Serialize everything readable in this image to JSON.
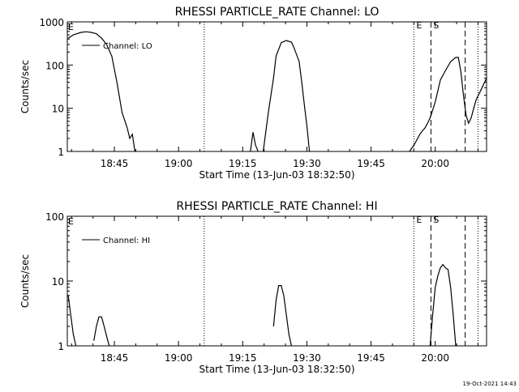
{
  "chart_data": [
    {
      "type": "line",
      "title": "RHESSI PARTICLE_RATE Channel: LO",
      "xlabel": "Start Time (13-Jun-03 18:32:50)",
      "ylabel": "Counts/sec",
      "y_scale": "log",
      "ylim": [
        1,
        1000
      ],
      "xlim": [
        "18:34",
        "20:12"
      ],
      "x_ticks": [
        "18:45",
        "19:00",
        "19:15",
        "19:30",
        "19:45",
        "20:00"
      ],
      "y_ticks": [
        "1",
        "10",
        "100",
        "1000"
      ],
      "legend": "top-left",
      "grid": false,
      "series": [
        {
          "name": "Channel: LO",
          "segments": [
            [
              [
                18.57,
                420
              ],
              [
                18.59,
                500
              ],
              [
                18.62,
                570
              ],
              [
                18.64,
                590
              ],
              [
                18.66,
                570
              ],
              [
                18.68,
                530
              ],
              [
                18.7,
                420
              ],
              [
                18.72,
                300
              ],
              [
                18.74,
                160
              ],
              [
                18.76,
                40
              ],
              [
                18.78,
                8
              ],
              [
                18.8,
                3.5
              ],
              [
                18.81,
                2
              ],
              [
                18.82,
                2.5
              ],
              [
                18.83,
                1
              ]
            ],
            [
              [
                19.28,
                1
              ],
              [
                19.29,
                2.8
              ],
              [
                19.3,
                1.4
              ],
              [
                19.31,
                1
              ]
            ],
            [
              [
                19.33,
                1
              ],
              [
                19.35,
                8
              ],
              [
                19.37,
                50
              ],
              [
                19.38,
                160
              ],
              [
                19.4,
                330
              ],
              [
                19.42,
                370
              ],
              [
                19.44,
                340
              ],
              [
                19.45,
                250
              ],
              [
                19.47,
                120
              ],
              [
                19.48,
                40
              ],
              [
                19.49,
                12
              ],
              [
                19.5,
                4
              ],
              [
                19.51,
                1
              ]
            ],
            [
              [
                19.9,
                1
              ],
              [
                19.92,
                1.5
              ],
              [
                19.94,
                2.5
              ],
              [
                19.95,
                3
              ],
              [
                19.96,
                3.5
              ],
              [
                19.97,
                4.5
              ],
              [
                19.98,
                6
              ],
              [
                19.99,
                9
              ],
              [
                20.0,
                14
              ],
              [
                20.01,
                25
              ],
              [
                20.02,
                45
              ],
              [
                20.04,
                75
              ],
              [
                20.06,
                120
              ],
              [
                20.08,
                150
              ],
              [
                20.09,
                150
              ],
              [
                20.1,
                70
              ],
              [
                20.11,
                20
              ],
              [
                20.12,
                7
              ],
              [
                20.13,
                4.5
              ],
              [
                20.14,
                6
              ],
              [
                20.15,
                10
              ],
              [
                20.16,
                16
              ],
              [
                20.18,
                28
              ],
              [
                20.2,
                50
              ]
            ]
          ]
        }
      ],
      "annotations": [
        {
          "type": "dotted-line",
          "x": "19:06"
        },
        {
          "type": "dotted-line",
          "x": "19:55",
          "label": "E"
        },
        {
          "type": "dashed-line",
          "x": "19:59",
          "label": "S"
        },
        {
          "type": "dashed-line",
          "x": "20:07"
        },
        {
          "type": "dotted-line",
          "x": "20:10"
        },
        {
          "type": "marker",
          "x": "18:34",
          "label": "E"
        }
      ]
    },
    {
      "type": "line",
      "title": "RHESSI PARTICLE_RATE Channel: HI",
      "xlabel": "Start Time (13-Jun-03 18:32:50)",
      "ylabel": "Counts/sec",
      "y_scale": "log",
      "ylim": [
        1,
        100
      ],
      "xlim": [
        "18:34",
        "20:12"
      ],
      "x_ticks": [
        "18:45",
        "19:00",
        "19:15",
        "19:30",
        "19:45",
        "20:00"
      ],
      "y_ticks": [
        "1",
        "10",
        "100"
      ],
      "legend": "top-left",
      "grid": false,
      "series": [
        {
          "name": "Channel: HI",
          "segments": [
            [
              [
                18.57,
                6
              ],
              [
                18.58,
                3
              ],
              [
                18.59,
                1.5
              ],
              [
                18.6,
                1
              ]
            ],
            [
              [
                18.67,
                1.2
              ],
              [
                18.68,
                2
              ],
              [
                18.69,
                2.8
              ],
              [
                18.7,
                2.8
              ],
              [
                18.71,
                2
              ],
              [
                18.72,
                1.4
              ],
              [
                18.73,
                1
              ]
            ],
            [
              [
                19.37,
                2
              ],
              [
                19.38,
                5
              ],
              [
                19.39,
                8.5
              ],
              [
                19.4,
                8.5
              ],
              [
                19.41,
                6
              ],
              [
                19.42,
                3
              ],
              [
                19.43,
                1.5
              ],
              [
                19.44,
                1
              ]
            ],
            [
              [
                19.98,
                1
              ],
              [
                19.99,
                3
              ],
              [
                20.0,
                8
              ],
              [
                20.01,
                12
              ],
              [
                20.02,
                16
              ],
              [
                20.03,
                18
              ],
              [
                20.04,
                16
              ],
              [
                20.05,
                15
              ],
              [
                20.06,
                8
              ],
              [
                20.07,
                3
              ],
              [
                20.08,
                1
              ]
            ]
          ]
        }
      ],
      "annotations": [
        {
          "type": "dotted-line",
          "x": "19:06"
        },
        {
          "type": "dotted-line",
          "x": "19:55",
          "label": "E"
        },
        {
          "type": "dashed-line",
          "x": "19:59",
          "label": "S"
        },
        {
          "type": "dashed-line",
          "x": "20:07"
        },
        {
          "type": "dotted-line",
          "x": "20:10"
        },
        {
          "type": "marker",
          "x": "18:34",
          "label": "E"
        }
      ]
    }
  ],
  "timestamp": "19-Oct-2021 14:43"
}
